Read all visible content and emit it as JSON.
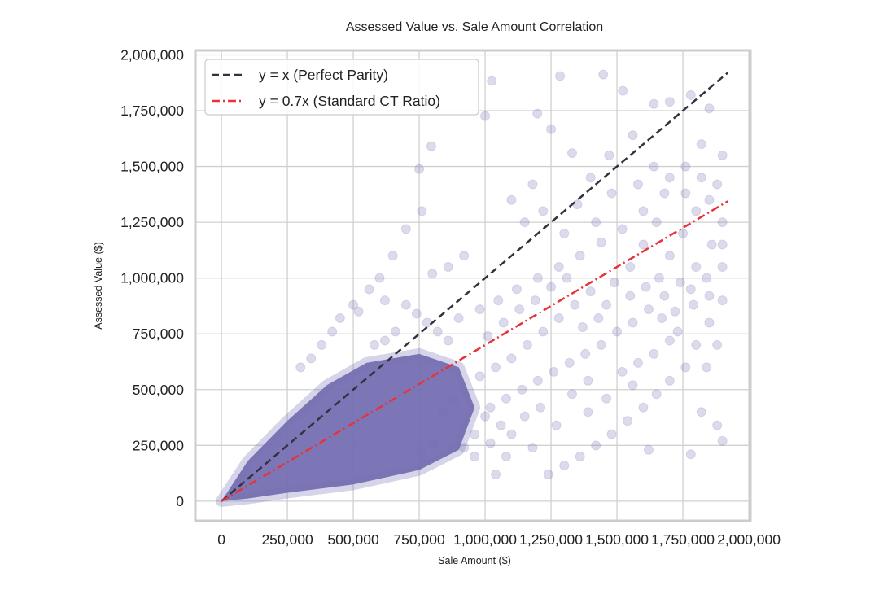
{
  "chart_data": {
    "type": "scatter",
    "title": "Assessed Value vs. Sale Amount Correlation",
    "xlabel": "Sale Amount ($)",
    "ylabel": "Assessed Value ($)",
    "xlim": [
      -99000,
      2006000
    ],
    "ylim": [
      -88000,
      2020000
    ],
    "grid": true,
    "legend_placement": "top-left",
    "x_ticks": [
      0,
      250000,
      500000,
      750000,
      1000000,
      1250000,
      1500000,
      1750000,
      2000000
    ],
    "x_tick_labels": [
      "0",
      "250,000",
      "500,000",
      "750,000",
      "1,000,000",
      "1,250,000",
      "1,500,000",
      "1,750,000",
      "2,000,000"
    ],
    "y_ticks": [
      0,
      250000,
      500000,
      750000,
      1000000,
      1250000,
      1500000,
      1750000,
      2000000
    ],
    "y_tick_labels": [
      "0",
      "250,000",
      "500,000",
      "750,000",
      "1,000,000",
      "1,250,000",
      "1,500,000",
      "1,750,000",
      "2,000,000"
    ],
    "colors": {
      "points": "#7570b3",
      "parity": "#333340",
      "ratio": "#e8323a",
      "grid": "#d0d0d0"
    },
    "lines": [
      {
        "name": "y = x (Perfect Parity)",
        "slope": 1.0,
        "x_range": [
          0,
          1920000
        ],
        "style": "dashed"
      },
      {
        "name": "y = 0.7x (Standard CT Ratio)",
        "slope": 0.7,
        "x_range": [
          0,
          1920000
        ],
        "style": "dashdot"
      }
    ],
    "dense_region": [
      [
        0,
        0
      ],
      [
        100000,
        180000
      ],
      [
        250000,
        360000
      ],
      [
        400000,
        520000
      ],
      [
        550000,
        620000
      ],
      [
        750000,
        660000
      ],
      [
        900000,
        600000
      ],
      [
        960000,
        420000
      ],
      [
        900000,
        230000
      ],
      [
        750000,
        140000
      ],
      [
        500000,
        75000
      ],
      [
        250000,
        38000
      ],
      [
        100000,
        12000
      ]
    ],
    "points": [
      [
        1025000,
        1883000
      ],
      [
        1284000,
        1905000
      ],
      [
        1448000,
        1912000
      ],
      [
        1522000,
        1839000
      ],
      [
        1000000,
        1726000
      ],
      [
        796000,
        1591000
      ],
      [
        750000,
        1489000
      ],
      [
        1198000,
        1737000
      ],
      [
        1250000,
        1667000
      ],
      [
        1330000,
        1560000
      ],
      [
        1400000,
        1450000
      ],
      [
        1470000,
        1550000
      ],
      [
        1560000,
        1640000
      ],
      [
        1640000,
        1780000
      ],
      [
        1700000,
        1790000
      ],
      [
        1780000,
        1820000
      ],
      [
        1850000,
        1760000
      ],
      [
        1900000,
        1550000
      ],
      [
        1880000,
        1420000
      ],
      [
        1820000,
        1600000
      ],
      [
        1760000,
        1500000
      ],
      [
        1680000,
        1380000
      ],
      [
        1600000,
        1300000
      ],
      [
        1520000,
        1220000
      ],
      [
        1440000,
        1160000
      ],
      [
        1360000,
        1100000
      ],
      [
        1280000,
        1050000
      ],
      [
        1200000,
        1000000
      ],
      [
        1120000,
        950000
      ],
      [
        1050000,
        900000
      ],
      [
        980000,
        860000
      ],
      [
        900000,
        820000
      ],
      [
        1900000,
        1250000
      ],
      [
        1860000,
        1150000
      ],
      [
        1800000,
        1050000
      ],
      [
        1740000,
        980000
      ],
      [
        1680000,
        920000
      ],
      [
        1620000,
        860000
      ],
      [
        1560000,
        800000
      ],
      [
        1500000,
        760000
      ],
      [
        1440000,
        700000
      ],
      [
        1380000,
        660000
      ],
      [
        1320000,
        620000
      ],
      [
        1260000,
        580000
      ],
      [
        1200000,
        540000
      ],
      [
        1140000,
        500000
      ],
      [
        1080000,
        460000
      ],
      [
        1020000,
        420000
      ],
      [
        1900000,
        900000
      ],
      [
        1850000,
        800000
      ],
      [
        1800000,
        700000
      ],
      [
        1760000,
        600000
      ],
      [
        1700000,
        540000
      ],
      [
        1650000,
        480000
      ],
      [
        1600000,
        420000
      ],
      [
        1540000,
        360000
      ],
      [
        1480000,
        300000
      ],
      [
        1420000,
        250000
      ],
      [
        1360000,
        200000
      ],
      [
        1300000,
        160000
      ],
      [
        1240000,
        120000
      ],
      [
        1180000,
        240000
      ],
      [
        1100000,
        300000
      ],
      [
        1040000,
        120000
      ],
      [
        1900000,
        270000
      ],
      [
        1880000,
        340000
      ],
      [
        1820000,
        400000
      ],
      [
        1780000,
        210000
      ],
      [
        1620000,
        230000
      ],
      [
        1560000,
        520000
      ],
      [
        1460000,
        460000
      ],
      [
        1390000,
        400000
      ],
      [
        920000,
        1100000
      ],
      [
        860000,
        1050000
      ],
      [
        800000,
        1020000
      ],
      [
        760000,
        1300000
      ],
      [
        700000,
        1220000
      ],
      [
        650000,
        1100000
      ],
      [
        600000,
        1000000
      ],
      [
        560000,
        950000
      ],
      [
        500000,
        880000
      ],
      [
        450000,
        820000
      ],
      [
        420000,
        760000
      ],
      [
        380000,
        700000
      ],
      [
        340000,
        640000
      ],
      [
        300000,
        600000
      ],
      [
        520000,
        850000
      ],
      [
        620000,
        900000
      ],
      [
        1100000,
        1350000
      ],
      [
        1150000,
        1250000
      ],
      [
        1180000,
        1420000
      ],
      [
        1220000,
        1300000
      ],
      [
        1300000,
        1200000
      ],
      [
        1350000,
        1330000
      ],
      [
        1420000,
        1250000
      ],
      [
        1480000,
        1380000
      ],
      [
        1550000,
        1050000
      ],
      [
        1600000,
        1150000
      ],
      [
        1650000,
        1250000
      ],
      [
        1700000,
        1100000
      ],
      [
        1750000,
        1200000
      ],
      [
        1800000,
        1300000
      ],
      [
        1850000,
        1350000
      ],
      [
        1900000,
        1050000
      ],
      [
        1660000,
        1000000
      ],
      [
        1720000,
        850000
      ],
      [
        1780000,
        950000
      ],
      [
        1840000,
        1000000
      ],
      [
        1880000,
        700000
      ],
      [
        1840000,
        600000
      ],
      [
        1700000,
        720000
      ],
      [
        1640000,
        660000
      ],
      [
        1580000,
        620000
      ],
      [
        1520000,
        580000
      ],
      [
        1460000,
        880000
      ],
      [
        1400000,
        940000
      ],
      [
        1340000,
        880000
      ],
      [
        1280000,
        820000
      ],
      [
        1220000,
        760000
      ],
      [
        1160000,
        700000
      ],
      [
        1100000,
        640000
      ],
      [
        1040000,
        600000
      ],
      [
        980000,
        560000
      ],
      [
        1010000,
        740000
      ],
      [
        1070000,
        800000
      ],
      [
        1130000,
        860000
      ],
      [
        1190000,
        900000
      ],
      [
        1250000,
        960000
      ],
      [
        1310000,
        1000000
      ],
      [
        1370000,
        780000
      ],
      [
        1430000,
        820000
      ],
      [
        1490000,
        980000
      ],
      [
        1550000,
        920000
      ],
      [
        1610000,
        960000
      ],
      [
        1670000,
        820000
      ],
      [
        1730000,
        760000
      ],
      [
        1790000,
        880000
      ],
      [
        1850000,
        920000
      ],
      [
        1900000,
        1150000
      ],
      [
        1820000,
        1450000
      ],
      [
        1760000,
        1380000
      ],
      [
        1700000,
        1450000
      ],
      [
        1640000,
        1500000
      ],
      [
        1580000,
        1420000
      ],
      [
        1000000,
        380000
      ],
      [
        960000,
        300000
      ],
      [
        1080000,
        200000
      ],
      [
        1150000,
        380000
      ],
      [
        1210000,
        420000
      ],
      [
        1270000,
        340000
      ],
      [
        1330000,
        480000
      ],
      [
        1390000,
        540000
      ],
      [
        860000,
        720000
      ],
      [
        820000,
        760000
      ],
      [
        780000,
        800000
      ],
      [
        740000,
        840000
      ],
      [
        700000,
        880000
      ],
      [
        660000,
        760000
      ],
      [
        620000,
        720000
      ],
      [
        580000,
        700000
      ],
      [
        880000,
        450000
      ],
      [
        840000,
        400000
      ],
      [
        800000,
        260000
      ],
      [
        760000,
        210000
      ],
      [
        920000,
        240000
      ],
      [
        960000,
        200000
      ],
      [
        1020000,
        260000
      ],
      [
        1060000,
        340000
      ]
    ]
  }
}
